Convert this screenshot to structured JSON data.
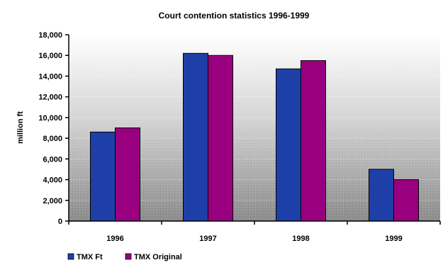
{
  "chart_data": {
    "type": "bar",
    "title": "Court contention statistics 1996-1999",
    "xlabel": "",
    "ylabel": "million ft",
    "categories": [
      "1996",
      "1997",
      "1998",
      "1999"
    ],
    "series": [
      {
        "name": "TMX Ft",
        "color": "#1f3fa8",
        "values": [
          8600,
          16200,
          14700,
          5000
        ]
      },
      {
        "name": "TMX Original",
        "color": "#990080",
        "values": [
          9000,
          16000,
          15500,
          4000
        ]
      }
    ],
    "ylim": [
      0,
      18000
    ],
    "yticks": [
      0,
      2000,
      4000,
      6000,
      8000,
      10000,
      12000,
      14000,
      16000,
      18000
    ],
    "ytick_labels": [
      "0",
      "2,000",
      "4,000",
      "6,000",
      "8,000",
      "10,000",
      "12,000",
      "14,000",
      "16,000",
      "18,000"
    ],
    "grid": true,
    "legend_position": "bottom-left"
  }
}
